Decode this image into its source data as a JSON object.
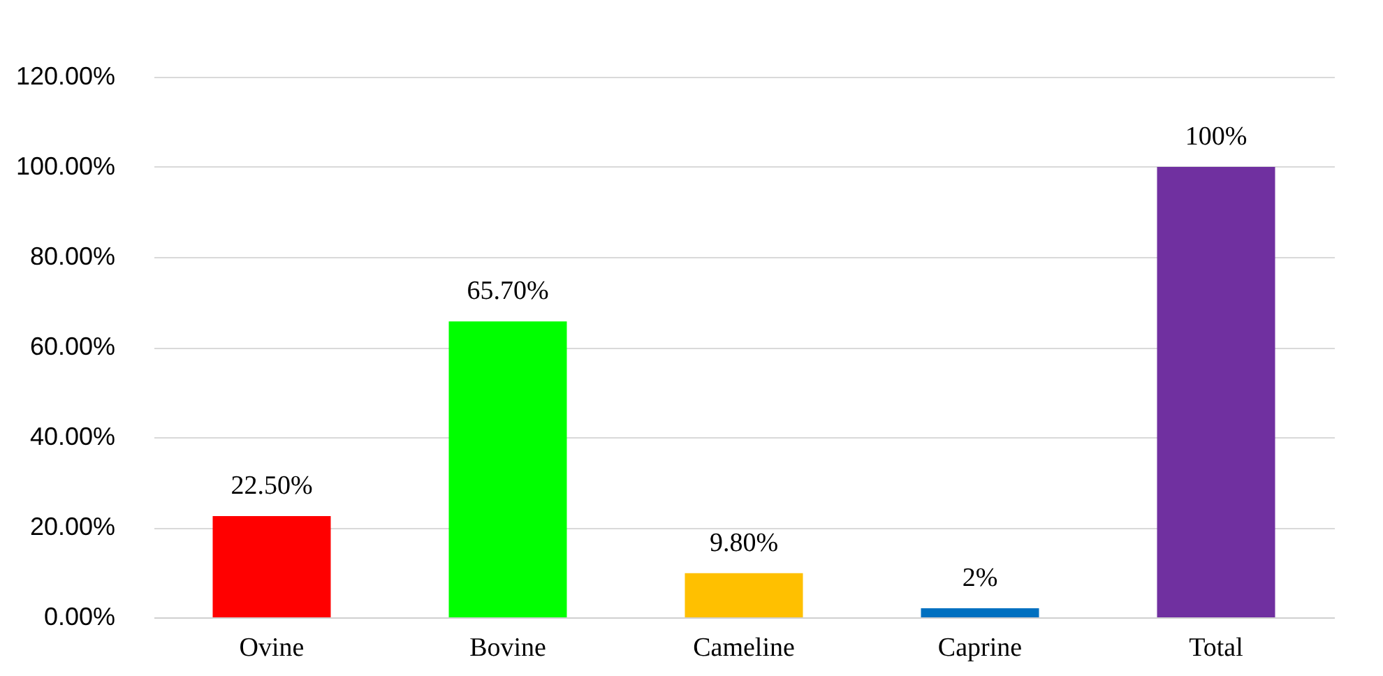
{
  "chart_data": {
    "type": "bar",
    "categories": [
      "Ovine",
      "Bovine",
      "Cameline",
      "Caprine",
      "Total"
    ],
    "values": [
      22.5,
      65.7,
      9.8,
      2,
      100
    ],
    "colors": [
      "#ff0000",
      "#00ff00",
      "#ffc000",
      "#0070c0",
      "#7030a0"
    ],
    "value_labels": [
      "22.50%",
      "65.70%",
      "9.80%",
      "2%",
      "100%"
    ],
    "ylim": [
      0,
      120
    ],
    "yticks": [
      {
        "value": 0,
        "label": "0.00%"
      },
      {
        "value": 20,
        "label": "20.00%"
      },
      {
        "value": 40,
        "label": "40.00%"
      },
      {
        "value": 60,
        "label": "60.00%"
      },
      {
        "value": 80,
        "label": "80.00%"
      },
      {
        "value": 100,
        "label": "100.00%"
      },
      {
        "value": 120,
        "label": "120.00%"
      }
    ],
    "grid": "y"
  }
}
